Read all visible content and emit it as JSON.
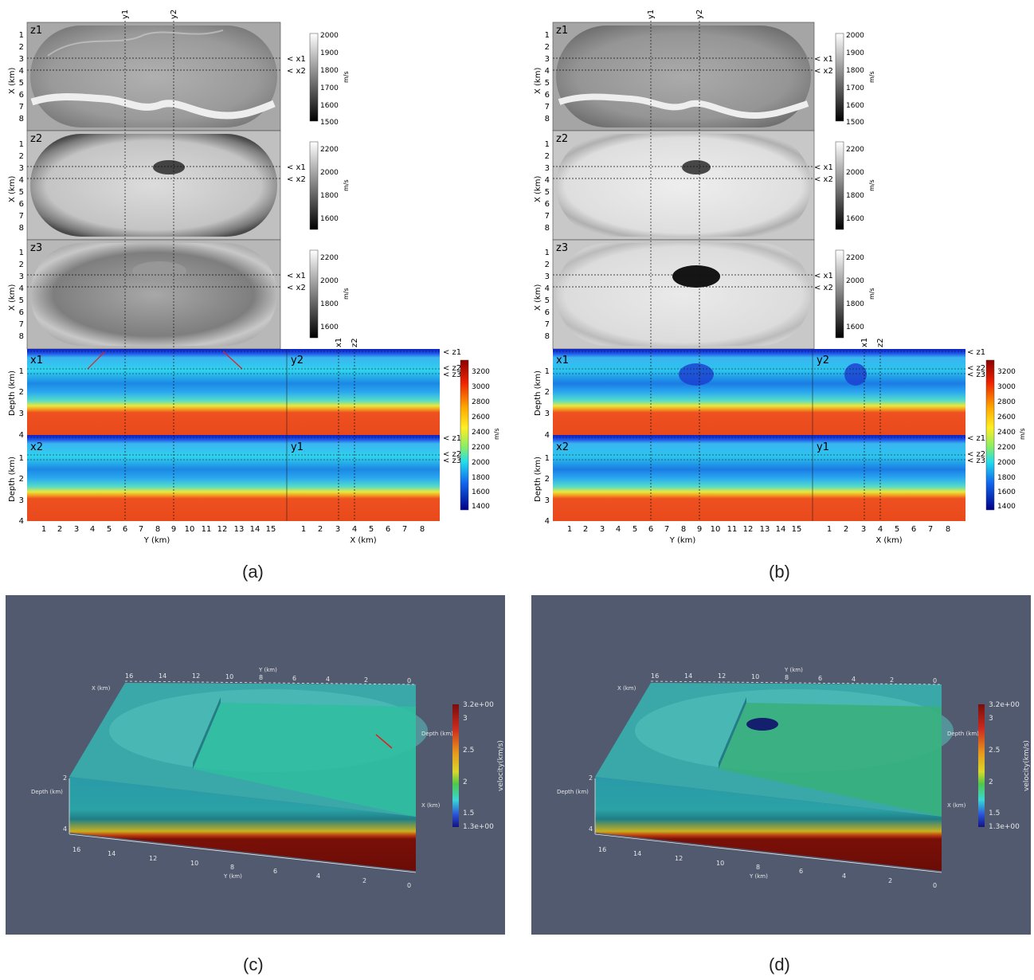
{
  "panels": {
    "a": {
      "caption": "(a)",
      "top_labels": [
        "y1",
        "y2"
      ],
      "map_slices": [
        {
          "label": "z1",
          "colorbar_ticks": [
            "2000",
            "1900",
            "1800",
            "1700",
            "1600",
            "1500"
          ],
          "unit": "m/s"
        },
        {
          "label": "z2",
          "colorbar_ticks": [
            "2200",
            "2000",
            "1800",
            "1600"
          ],
          "unit": "m/s"
        },
        {
          "label": "z3",
          "colorbar_ticks": [
            "2200",
            "2000",
            "1800",
            "1600"
          ],
          "unit": "m/s"
        }
      ],
      "x_tick_labels": [
        "1",
        "2",
        "3",
        "4",
        "5",
        "6",
        "7",
        "8"
      ],
      "x_axis_label": "X (km)",
      "x_markers": [
        "< x1",
        "< x2"
      ],
      "section_rows": [
        {
          "left_label": "x1",
          "right_label": "y2"
        },
        {
          "left_label": "x2",
          "right_label": "y1"
        }
      ],
      "section_top_labels": [
        "x1",
        "z2"
      ],
      "z_markers": [
        "< z1",
        "< z2",
        "< z3"
      ],
      "depth_axis_label": "Depth (km)",
      "depth_ticks": [
        "1",
        "2",
        "3",
        "4"
      ],
      "velocity_ticks": [
        "3200",
        "3000",
        "2800",
        "2600",
        "2400",
        "2200",
        "2000",
        "1800",
        "1600",
        "1400"
      ],
      "velocity_unit": "m/s",
      "y_axis_ticks": [
        "1",
        "2",
        "3",
        "4",
        "5",
        "6",
        "7",
        "8",
        "9",
        "10",
        "11",
        "12",
        "13",
        "14",
        "15"
      ],
      "y_axis_label": "Y (km)",
      "xs_axis_ticks": [
        "1",
        "2",
        "3",
        "4",
        "5",
        "6",
        "7",
        "8"
      ],
      "xs_axis_label": "X (km)"
    },
    "b": {
      "caption": "(b)",
      "top_labels": [
        "y1",
        "y2"
      ],
      "map_slices": [
        {
          "label": "z1",
          "colorbar_ticks": [
            "2000",
            "1900",
            "1800",
            "1700",
            "1600",
            "1500"
          ],
          "unit": "m/s"
        },
        {
          "label": "z2",
          "colorbar_ticks": [
            "2200",
            "2000",
            "1800",
            "1600"
          ],
          "unit": "m/s"
        },
        {
          "label": "z3",
          "colorbar_ticks": [
            "2200",
            "2000",
            "1800",
            "1600"
          ],
          "unit": "m/s"
        }
      ],
      "x_tick_labels": [
        "1",
        "2",
        "3",
        "4",
        "5",
        "6",
        "7",
        "8"
      ],
      "x_axis_label": "X (km)",
      "x_markers": [
        "< x1",
        "< x2"
      ],
      "section_rows": [
        {
          "left_label": "x1",
          "right_label": "y2"
        },
        {
          "left_label": "x2",
          "right_label": "y1"
        }
      ],
      "section_top_labels": [
        "x1",
        "z2"
      ],
      "z_markers": [
        "< z1",
        "< z2",
        "< z3"
      ],
      "depth_axis_label": "Depth (km)",
      "depth_ticks": [
        "1",
        "2",
        "3",
        "4"
      ],
      "velocity_ticks": [
        "3200",
        "3000",
        "2800",
        "2600",
        "2400",
        "2200",
        "2000",
        "1800",
        "1600",
        "1400"
      ],
      "velocity_unit": "m/s",
      "y_axis_ticks": [
        "1",
        "2",
        "3",
        "4",
        "5",
        "6",
        "7",
        "8",
        "9",
        "10",
        "11",
        "12",
        "13",
        "14",
        "15"
      ],
      "y_axis_label": "Y (km)",
      "xs_axis_ticks": [
        "1",
        "2",
        "3",
        "4",
        "5",
        "6",
        "7",
        "8"
      ],
      "xs_axis_label": "X (km)"
    },
    "c": {
      "caption": "(c)",
      "background": "#525a70",
      "y_axis_label": "Y (km)",
      "y_ticks_top": [
        "16",
        "14",
        "12",
        "10",
        "8",
        "6",
        "4",
        "2",
        "0"
      ],
      "y_ticks_bottom": [
        "16",
        "14",
        "12",
        "10",
        "8",
        "6",
        "4",
        "2",
        "0"
      ],
      "x_axis_label": "X (km)",
      "depth_axis_label": "Depth (km)",
      "depth_ticks": [
        "2",
        "4"
      ],
      "colorbar_title": "velocity(km/s)",
      "colorbar_ticks": [
        "3.2e+00",
        "3",
        "2.5",
        "2",
        "1.5",
        "1.3e+00"
      ]
    },
    "d": {
      "caption": "(d)",
      "background": "#525a70",
      "y_axis_label": "Y (km)",
      "y_ticks_top": [
        "16",
        "14",
        "12",
        "10",
        "8",
        "6",
        "4",
        "2",
        "0"
      ],
      "y_ticks_bottom": [
        "16",
        "14",
        "12",
        "10",
        "8",
        "6",
        "4",
        "2",
        "0"
      ],
      "x_axis_label": "X (km)",
      "depth_axis_label": "Depth (km)",
      "depth_ticks": [
        "2",
        "4"
      ],
      "colorbar_title": "velocity(km/s)",
      "colorbar_ticks": [
        "3.2e+00",
        "3",
        "2.5",
        "2",
        "1.5",
        "1.3e+00"
      ]
    }
  }
}
